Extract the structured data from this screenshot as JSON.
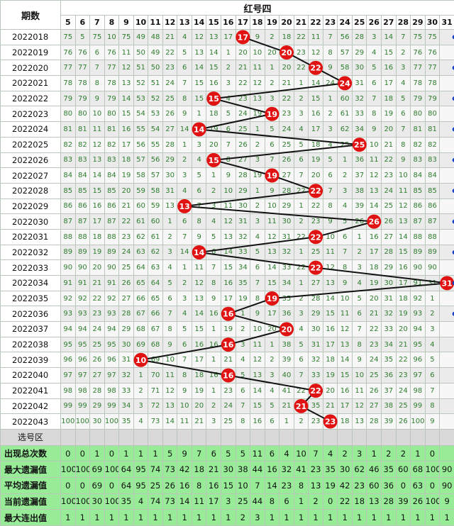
{
  "header": {
    "period_label": "期数",
    "group_title": "红号四"
  },
  "columns": [
    "5",
    "6",
    "7",
    "8",
    "9",
    "10",
    "11",
    "12",
    "13",
    "14",
    "15",
    "16",
    "17",
    "18",
    "19",
    "20",
    "21",
    "22",
    "23",
    "24",
    "25",
    "26",
    "27",
    "28",
    "29",
    "30",
    "31"
  ],
  "rows": [
    {
      "period": "2022018",
      "cells": [
        "75",
        "5",
        "75",
        "10",
        "75",
        "49",
        "48",
        "21",
        "4",
        "12",
        "13",
        "17",
        "19",
        "9",
        "2",
        "18",
        "22",
        "11",
        "7",
        "56",
        "28",
        "3",
        "14",
        "7",
        "75",
        "75",
        ""
      ],
      "hit": "17"
    },
    {
      "period": "2022019",
      "cells": [
        "76",
        "76",
        "6",
        "76",
        "11",
        "50",
        "49",
        "22",
        "5",
        "13",
        "14",
        "1",
        "20",
        "10",
        "20",
        "19",
        "23",
        "12",
        "8",
        "57",
        "29",
        "4",
        "15",
        "2",
        "76",
        "76",
        ""
      ],
      "hit": "20"
    },
    {
      "period": "2022020",
      "cells": [
        "77",
        "77",
        "7",
        "77",
        "12",
        "51",
        "50",
        "23",
        "6",
        "14",
        "15",
        "2",
        "21",
        "11",
        "1",
        "20",
        "22",
        "13",
        "9",
        "58",
        "30",
        "5",
        "16",
        "3",
        "77",
        "77",
        ""
      ],
      "hit": "22"
    },
    {
      "period": "2022021",
      "cells": [
        "78",
        "78",
        "8",
        "78",
        "13",
        "52",
        "51",
        "24",
        "7",
        "15",
        "16",
        "3",
        "22",
        "12",
        "2",
        "21",
        "1",
        "14",
        "24",
        "59",
        "31",
        "6",
        "17",
        "4",
        "78",
        "78",
        ""
      ],
      "hit": "24"
    },
    {
      "period": "2022022",
      "cells": [
        "79",
        "79",
        "9",
        "79",
        "14",
        "53",
        "52",
        "25",
        "8",
        "15",
        "1",
        "4",
        "23",
        "13",
        "3",
        "22",
        "2",
        "15",
        "1",
        "60",
        "32",
        "7",
        "18",
        "5",
        "79",
        "79",
        ""
      ],
      "hit": "15"
    },
    {
      "period": "2022023",
      "cells": [
        "80",
        "80",
        "10",
        "80",
        "15",
        "54",
        "53",
        "26",
        "9",
        "1",
        "18",
        "5",
        "24",
        "19",
        "4",
        "23",
        "3",
        "16",
        "2",
        "61",
        "33",
        "8",
        "19",
        "6",
        "80",
        "80",
        ""
      ],
      "hit": "19"
    },
    {
      "period": "2022024",
      "cells": [
        "81",
        "81",
        "11",
        "81",
        "16",
        "55",
        "54",
        "27",
        "14",
        "2",
        "19",
        "6",
        "25",
        "1",
        "5",
        "24",
        "4",
        "17",
        "3",
        "62",
        "34",
        "9",
        "20",
        "7",
        "81",
        "81",
        ""
      ],
      "hit": "14"
    },
    {
      "period": "2022025",
      "cells": [
        "82",
        "82",
        "12",
        "82",
        "17",
        "56",
        "55",
        "28",
        "1",
        "3",
        "20",
        "7",
        "26",
        "2",
        "6",
        "25",
        "5",
        "18",
        "4",
        "25",
        "35",
        "10",
        "21",
        "8",
        "82",
        "82",
        ""
      ],
      "hit": "25"
    },
    {
      "period": "2022026",
      "cells": [
        "83",
        "83",
        "13",
        "83",
        "18",
        "57",
        "56",
        "29",
        "2",
        "4",
        "15",
        "8",
        "27",
        "3",
        "7",
        "26",
        "6",
        "19",
        "5",
        "1",
        "36",
        "11",
        "22",
        "9",
        "83",
        "83",
        ""
      ],
      "hit": "15"
    },
    {
      "period": "2022027",
      "cells": [
        "84",
        "84",
        "14",
        "84",
        "19",
        "58",
        "57",
        "30",
        "3",
        "5",
        "1",
        "9",
        "28",
        "19",
        "8",
        "27",
        "7",
        "20",
        "6",
        "2",
        "37",
        "12",
        "23",
        "10",
        "84",
        "84",
        ""
      ],
      "hit": "19"
    },
    {
      "period": "2022028",
      "cells": [
        "85",
        "85",
        "15",
        "85",
        "20",
        "59",
        "58",
        "31",
        "4",
        "6",
        "2",
        "10",
        "29",
        "1",
        "9",
        "28",
        "22",
        "21",
        "7",
        "3",
        "38",
        "13",
        "24",
        "11",
        "85",
        "85",
        ""
      ],
      "hit": "22"
    },
    {
      "period": "2022029",
      "cells": [
        "86",
        "86",
        "16",
        "86",
        "21",
        "60",
        "59",
        "13",
        "5",
        "7",
        "3",
        "11",
        "30",
        "2",
        "10",
        "29",
        "1",
        "22",
        "8",
        "4",
        "39",
        "14",
        "25",
        "12",
        "86",
        "86",
        ""
      ],
      "hit": "13"
    },
    {
      "period": "2022030",
      "cells": [
        "87",
        "87",
        "17",
        "87",
        "22",
        "61",
        "60",
        "1",
        "6",
        "8",
        "4",
        "12",
        "31",
        "3",
        "11",
        "30",
        "2",
        "23",
        "9",
        "5",
        "26",
        "15",
        "26",
        "13",
        "87",
        "87",
        ""
      ],
      "hit": "26"
    },
    {
      "period": "2022031",
      "cells": [
        "88",
        "88",
        "18",
        "88",
        "23",
        "62",
        "61",
        "2",
        "7",
        "9",
        "5",
        "13",
        "32",
        "4",
        "12",
        "31",
        "22",
        "24",
        "10",
        "6",
        "1",
        "16",
        "27",
        "14",
        "88",
        "88",
        ""
      ],
      "hit": "22"
    },
    {
      "period": "2022032",
      "cells": [
        "89",
        "89",
        "19",
        "89",
        "24",
        "63",
        "62",
        "3",
        "14",
        "10",
        "6",
        "14",
        "33",
        "5",
        "13",
        "32",
        "1",
        "25",
        "11",
        "7",
        "2",
        "17",
        "28",
        "15",
        "89",
        "89",
        ""
      ],
      "hit": "14"
    },
    {
      "period": "2022033",
      "cells": [
        "90",
        "90",
        "20",
        "90",
        "25",
        "64",
        "63",
        "4",
        "1",
        "11",
        "7",
        "15",
        "34",
        "6",
        "14",
        "33",
        "22",
        "26",
        "12",
        "8",
        "3",
        "18",
        "29",
        "16",
        "90",
        "90",
        ""
      ],
      "hit": "22"
    },
    {
      "period": "2022034",
      "cells": [
        "91",
        "91",
        "21",
        "91",
        "26",
        "65",
        "64",
        "5",
        "2",
        "12",
        "8",
        "16",
        "35",
        "7",
        "15",
        "34",
        "1",
        "27",
        "13",
        "9",
        "4",
        "19",
        "30",
        "17",
        "91",
        "31",
        ""
      ],
      "hit": "31"
    },
    {
      "period": "2022035",
      "cells": [
        "92",
        "92",
        "22",
        "92",
        "27",
        "66",
        "65",
        "6",
        "3",
        "13",
        "9",
        "17",
        "19",
        "8",
        "16",
        "35",
        "2",
        "28",
        "14",
        "10",
        "5",
        "20",
        "31",
        "18",
        "92",
        "1",
        ""
      ],
      "hit": "19"
    },
    {
      "period": "2022036",
      "cells": [
        "93",
        "93",
        "23",
        "93",
        "28",
        "67",
        "66",
        "7",
        "4",
        "14",
        "16",
        "18",
        "1",
        "9",
        "17",
        "36",
        "3",
        "29",
        "15",
        "11",
        "6",
        "21",
        "32",
        "19",
        "93",
        "2",
        ""
      ],
      "hit": "16"
    },
    {
      "period": "2022037",
      "cells": [
        "94",
        "94",
        "24",
        "94",
        "29",
        "68",
        "67",
        "8",
        "5",
        "15",
        "1",
        "19",
        "2",
        "10",
        "20",
        "37",
        "4",
        "30",
        "16",
        "12",
        "7",
        "22",
        "33",
        "20",
        "94",
        "3",
        ""
      ],
      "hit": "20"
    },
    {
      "period": "2022038",
      "cells": [
        "95",
        "95",
        "25",
        "95",
        "30",
        "69",
        "68",
        "9",
        "6",
        "16",
        "16",
        "20",
        "3",
        "11",
        "1",
        "38",
        "5",
        "31",
        "17",
        "13",
        "8",
        "23",
        "34",
        "21",
        "95",
        "4",
        ""
      ],
      "hit": "16"
    },
    {
      "period": "2022039",
      "cells": [
        "96",
        "96",
        "26",
        "96",
        "31",
        "10",
        "69",
        "10",
        "7",
        "17",
        "1",
        "21",
        "4",
        "12",
        "2",
        "39",
        "6",
        "32",
        "18",
        "14",
        "9",
        "24",
        "35",
        "22",
        "96",
        "5",
        ""
      ],
      "hit": "10"
    },
    {
      "period": "2022040",
      "cells": [
        "97",
        "97",
        "27",
        "97",
        "32",
        "1",
        "70",
        "11",
        "8",
        "18",
        "16",
        "22",
        "5",
        "13",
        "3",
        "40",
        "7",
        "33",
        "19",
        "15",
        "10",
        "25",
        "36",
        "23",
        "97",
        "6",
        ""
      ],
      "hit": "16"
    },
    {
      "period": "2022041",
      "cells": [
        "98",
        "98",
        "28",
        "98",
        "33",
        "2",
        "71",
        "12",
        "9",
        "19",
        "1",
        "23",
        "6",
        "14",
        "4",
        "41",
        "22",
        "34",
        "20",
        "16",
        "11",
        "26",
        "37",
        "24",
        "98",
        "7",
        ""
      ],
      "hit": "22"
    },
    {
      "period": "2022042",
      "cells": [
        "99",
        "99",
        "29",
        "99",
        "34",
        "3",
        "72",
        "13",
        "10",
        "20",
        "2",
        "24",
        "7",
        "15",
        "5",
        "21",
        "1",
        "35",
        "21",
        "17",
        "12",
        "27",
        "38",
        "25",
        "99",
        "8",
        ""
      ],
      "hit": "21"
    },
    {
      "period": "2022043",
      "cells": [
        "100",
        "100",
        "30",
        "100",
        "35",
        "4",
        "73",
        "14",
        "11",
        "21",
        "3",
        "25",
        "8",
        "16",
        "6",
        "1",
        "2",
        "23",
        "22",
        "18",
        "13",
        "28",
        "39",
        "26",
        "100",
        "9",
        ""
      ],
      "hit": "23"
    }
  ],
  "select_row_label": "选号区",
  "stats": [
    {
      "label": "出现总次数",
      "values": [
        "0",
        "0",
        "1",
        "0",
        "1",
        "1",
        "1",
        "5",
        "9",
        "7",
        "6",
        "5",
        "5",
        "11",
        "6",
        "4",
        "10",
        "7",
        "4",
        "2",
        "3",
        "1",
        "2",
        "2",
        "1",
        "0",
        ""
      ]
    },
    {
      "label": "最大遗漏值",
      "values": [
        "100",
        "100",
        "69",
        "100",
        "64",
        "95",
        "74",
        "73",
        "42",
        "18",
        "21",
        "30",
        "38",
        "44",
        "16",
        "32",
        "41",
        "23",
        "35",
        "30",
        "62",
        "46",
        "35",
        "60",
        "68",
        "100",
        "90"
      ]
    },
    {
      "label": "平均遗漏值",
      "values": [
        "0",
        "0",
        "69",
        "0",
        "64",
        "95",
        "25",
        "26",
        "16",
        "8",
        "16",
        "15",
        "10",
        "7",
        "14",
        "23",
        "8",
        "13",
        "19",
        "42",
        "23",
        "60",
        "36",
        "0",
        "63",
        "0",
        "90"
      ]
    },
    {
      "label": "当前遗漏值",
      "values": [
        "100",
        "100",
        "30",
        "100",
        "35",
        "4",
        "74",
        "73",
        "14",
        "11",
        "17",
        "3",
        "25",
        "44",
        "8",
        "6",
        "1",
        "2",
        "0",
        "22",
        "18",
        "13",
        "28",
        "39",
        "26",
        "100",
        "9"
      ]
    },
    {
      "label": "最大连出值",
      "values": [
        "1",
        "1",
        "1",
        "1",
        "1",
        "1",
        "1",
        "1",
        "1",
        "1",
        "1",
        "1",
        "2",
        "3",
        "1",
        "1",
        "1",
        "1",
        "1",
        "1",
        "1",
        "1",
        "1",
        "1",
        "1",
        "1",
        "1"
      ]
    }
  ],
  "chart_data": {
    "type": "table",
    "title": "红号四",
    "x_columns": [
      5,
      6,
      7,
      8,
      9,
      10,
      11,
      12,
      13,
      14,
      15,
      16,
      17,
      18,
      19,
      20,
      21,
      22,
      23,
      24,
      25,
      26,
      27,
      28,
      29,
      30,
      31
    ],
    "periods": [
      "2022018",
      "2022019",
      "2022020",
      "2022021",
      "2022022",
      "2022023",
      "2022024",
      "2022025",
      "2022026",
      "2022027",
      "2022028",
      "2022029",
      "2022030",
      "2022031",
      "2022032",
      "2022033",
      "2022034",
      "2022035",
      "2022036",
      "2022037",
      "2022038",
      "2022039",
      "2022040",
      "2022041",
      "2022042",
      "2022043"
    ],
    "drawn_number": [
      17,
      20,
      22,
      24,
      15,
      19,
      14,
      25,
      15,
      19,
      22,
      13,
      26,
      22,
      14,
      22,
      31,
      19,
      16,
      20,
      16,
      10,
      16,
      22,
      21,
      23
    ],
    "trend_line": true,
    "colors": {
      "ball": "#e01212",
      "line": "#111111",
      "stat_bg": "#98ec98",
      "cell_text": "#2e7d2e"
    }
  }
}
